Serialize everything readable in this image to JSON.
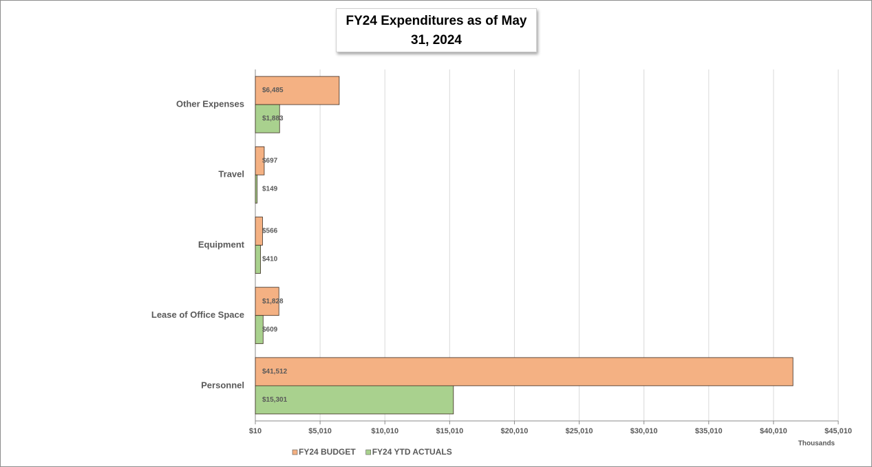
{
  "chart_data": {
    "type": "hbar",
    "title": "FY24 Expenditures as of May 31, 2024",
    "categories": [
      "Other Expenses",
      "Travel",
      "Equipment",
      "Lease of Office Space",
      "Personnel"
    ],
    "series": [
      {
        "name": "FY24 BUDGET",
        "color": "#f4b183",
        "values": [
          6485,
          697,
          566,
          1828,
          41512
        ],
        "value_labels": [
          "$6,485",
          "$697",
          "$566",
          "$1,828",
          "$41,512"
        ]
      },
      {
        "name": "FY24 YTD ACTUALS",
        "color": "#a9d18e",
        "values": [
          1883,
          149,
          410,
          609,
          15301
        ],
        "value_labels": [
          "$1,883",
          "$149",
          "$410",
          "$609",
          "$15,301"
        ]
      }
    ],
    "xlim": [
      10,
      45010
    ],
    "xticks": [
      {
        "value": 10,
        "label": "$10"
      },
      {
        "value": 5010,
        "label": "$5,010"
      },
      {
        "value": 10010,
        "label": "$10,010"
      },
      {
        "value": 15010,
        "label": "$15,010"
      },
      {
        "value": 20010,
        "label": "$20,010"
      },
      {
        "value": 25010,
        "label": "$25,010"
      },
      {
        "value": 30010,
        "label": "$30,010"
      },
      {
        "value": 35010,
        "label": "$35,010"
      },
      {
        "value": 40010,
        "label": "$40,010"
      },
      {
        "value": 45010,
        "label": "$45,010"
      }
    ],
    "xlabel": "Thousands",
    "grid": true,
    "legend": "bottom"
  }
}
